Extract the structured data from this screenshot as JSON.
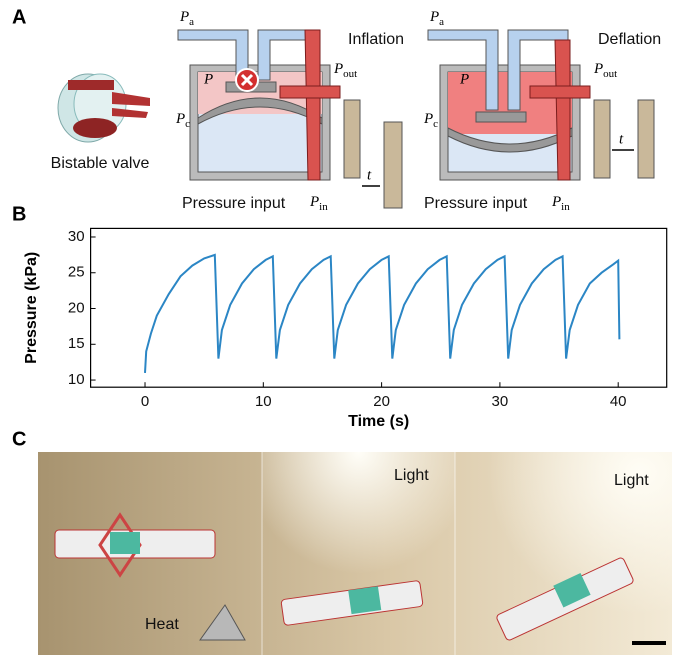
{
  "panel_labels": [
    "A",
    "B",
    "C"
  ],
  "diagram": {
    "device": "Bistable valve",
    "left": {
      "mode": "Inflation",
      "input": "Pressure input",
      "p_a": {
        "symbol": "P",
        "sub": "a"
      },
      "p": "P",
      "p_c": {
        "symbol": "P",
        "sub": "c"
      },
      "p_out": {
        "symbol": "P",
        "sub": "out"
      },
      "p_in": {
        "symbol": "P",
        "sub": "in"
      },
      "t": "t"
    },
    "right": {
      "mode": "Deflation",
      "input": "Pressure input",
      "p_a": {
        "symbol": "P",
        "sub": "a"
      },
      "p": "P",
      "p_c": {
        "symbol": "P",
        "sub": "c"
      },
      "p_out": {
        "symbol": "P",
        "sub": "out"
      },
      "p_in": {
        "symbol": "P",
        "sub": "in"
      },
      "t": "t"
    }
  },
  "chart_data": {
    "type": "line",
    "xlabel": "Time (s)",
    "ylabel": "Pressure (kPa)",
    "color": "#2b86c5",
    "x": [
      0,
      0.1,
      0.5,
      1,
      2,
      3,
      4,
      5,
      5.9,
      6.2,
      6.5,
      7.2,
      8.2,
      9.2,
      10.2,
      10.8,
      11.1,
      11.4,
      12.1,
      13.1,
      14.1,
      15.1,
      15.7,
      16.0,
      16.3,
      17,
      18,
      19,
      20,
      20.6,
      20.9,
      21.2,
      21.9,
      22.9,
      23.9,
      24.9,
      25.5,
      25.8,
      26.1,
      26.8,
      27.8,
      28.8,
      29.8,
      30.4,
      30.7,
      31,
      31.7,
      32.7,
      33.7,
      34.7,
      35.3,
      35.6,
      35.9,
      36.6,
      37.6,
      38.6,
      39.6,
      40.0,
      40.1
    ],
    "values": [
      11,
      14,
      16.5,
      19,
      22,
      24.5,
      26,
      27,
      27.5,
      13,
      17,
      20.5,
      23.5,
      25.5,
      26.8,
      27.3,
      13,
      17,
      20.5,
      23.5,
      25.5,
      26.8,
      27.3,
      13,
      17,
      20.5,
      23.5,
      25.5,
      26.8,
      27.3,
      13,
      17,
      20.5,
      23.5,
      25.5,
      26.8,
      27.3,
      13,
      17,
      20.5,
      23.5,
      25.5,
      26.8,
      27.3,
      13,
      17,
      20.5,
      23.5,
      25.5,
      26.8,
      27.3,
      13,
      17,
      20.5,
      23.5,
      25,
      26.2,
      26.7,
      15.7
    ],
    "xlim": [
      -4.6,
      44.1
    ],
    "xticks": [
      0,
      10,
      20,
      30,
      40
    ],
    "ylim": [
      9,
      31.2
    ],
    "yticks": [
      10,
      15,
      20,
      25,
      30
    ]
  },
  "photo": {
    "labels": [
      "Heat",
      "Light",
      "Light"
    ]
  }
}
